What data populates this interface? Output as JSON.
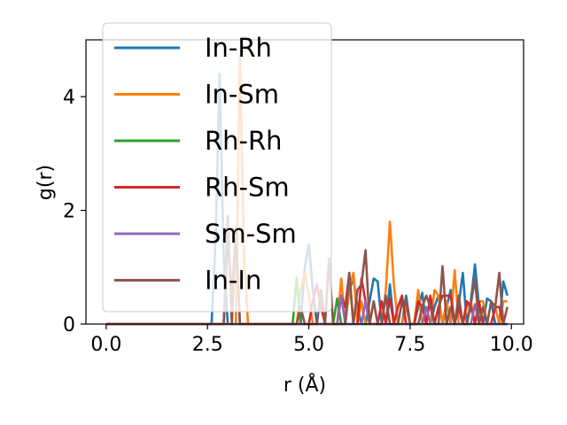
{
  "chart_data": {
    "type": "line",
    "title": "",
    "xlabel": "r (Å)",
    "ylabel": "g(r)",
    "xlim": [
      -0.5,
      10.3
    ],
    "ylim": [
      0,
      5.0
    ],
    "xticks": [
      0.0,
      2.5,
      5.0,
      7.5,
      10.0
    ],
    "xtick_labels": [
      "0.0",
      "2.5",
      "5.0",
      "7.5",
      "10.0"
    ],
    "yticks": [
      0,
      2,
      4
    ],
    "ytick_labels": [
      "0",
      "2",
      "4"
    ],
    "grid": false,
    "legend_position": "top-left",
    "x": [
      0.0,
      0.1,
      0.2,
      0.3,
      0.4,
      0.5,
      0.6,
      0.7,
      0.8,
      0.9,
      1.0,
      1.1,
      1.2,
      1.3,
      1.4,
      1.5,
      1.6,
      1.7,
      1.8,
      1.9,
      2.0,
      2.1,
      2.2,
      2.3,
      2.4,
      2.5,
      2.6,
      2.7,
      2.8,
      2.9,
      3.0,
      3.1,
      3.2,
      3.3,
      3.4,
      3.5,
      3.6,
      3.7,
      3.8,
      3.9,
      4.0,
      4.1,
      4.2,
      4.3,
      4.4,
      4.5,
      4.6,
      4.7,
      4.8,
      4.9,
      5.0,
      5.1,
      5.2,
      5.3,
      5.4,
      5.5,
      5.6,
      5.7,
      5.8,
      5.9,
      6.0,
      6.1,
      6.2,
      6.3,
      6.4,
      6.5,
      6.6,
      6.7,
      6.8,
      6.9,
      7.0,
      7.1,
      7.2,
      7.3,
      7.4,
      7.5,
      7.6,
      7.7,
      7.8,
      7.9,
      8.0,
      8.1,
      8.2,
      8.3,
      8.4,
      8.5,
      8.6,
      8.7,
      8.8,
      8.9,
      9.0,
      9.1,
      9.2,
      9.3,
      9.4,
      9.5,
      9.6,
      9.7,
      9.8,
      9.9
    ],
    "series": [
      {
        "name": "In-Rh",
        "color": "#1f77b4",
        "values": [
          0,
          0,
          0,
          0,
          0,
          0,
          0,
          0,
          0,
          0,
          0,
          0,
          0,
          0,
          0,
          0,
          0,
          0,
          0,
          0,
          0,
          0,
          0,
          0,
          0,
          0,
          0,
          1.5,
          4.4,
          1.2,
          0,
          0,
          0,
          0,
          0,
          0,
          0,
          0,
          0,
          0,
          0,
          0,
          0,
          0,
          0,
          0,
          0,
          0,
          0,
          1.0,
          1.4,
          0.6,
          0,
          0,
          0,
          0,
          0,
          0,
          0,
          0,
          0.6,
          0.8,
          0.3,
          0,
          0,
          0.4,
          0.8,
          0.75,
          0,
          0,
          0.7,
          0,
          0,
          0,
          0.5,
          0,
          0,
          0.3,
          0.55,
          0,
          0,
          0.3,
          0.5,
          0,
          0.3,
          0.6,
          0,
          0.35,
          0.9,
          0,
          0.4,
          1.05,
          0.3,
          0,
          0.45,
          0.4,
          0,
          0,
          0.75,
          0.5
        ]
      },
      {
        "name": "In-Sm",
        "color": "#ff7f0e",
        "values": [
          0,
          0,
          0,
          0,
          0,
          0,
          0,
          0,
          0,
          0,
          0,
          0,
          0,
          0,
          0,
          0,
          0,
          0,
          0,
          0,
          0,
          0,
          0,
          0,
          0,
          0,
          0,
          0,
          0,
          0,
          0,
          0,
          0,
          4.75,
          1.2,
          0,
          0,
          0,
          0,
          0,
          0,
          0,
          0,
          0,
          0,
          0,
          0,
          0,
          0.6,
          0.9,
          0.5,
          0,
          0,
          0,
          0,
          0,
          0,
          0,
          0.8,
          0,
          0.6,
          0.9,
          0,
          0.4,
          0,
          0,
          0.4,
          0,
          0,
          0.6,
          1.8,
          0.7,
          0,
          0,
          0.3,
          0,
          0,
          0.6,
          0,
          0,
          0,
          0.6,
          0.5,
          0,
          0.4,
          0,
          0.95,
          0,
          0,
          0.3,
          0.4,
          0,
          0.4,
          0.4,
          0,
          0,
          0.3,
          0,
          0.4,
          0.4
        ]
      },
      {
        "name": "Rh-Rh",
        "color": "#2ca02c",
        "values": [
          0,
          0,
          0,
          0,
          0,
          0,
          0,
          0,
          0,
          0,
          0,
          0,
          0,
          0,
          0,
          0,
          0,
          0,
          0,
          0,
          0,
          0,
          0,
          0,
          0,
          0,
          0,
          0,
          0,
          0,
          0,
          0,
          0,
          0,
          0,
          0,
          0,
          0,
          0,
          0,
          0,
          0,
          0,
          0,
          0,
          0,
          0,
          0.82,
          0,
          0,
          0,
          0,
          0,
          0,
          0,
          0,
          0,
          0.45,
          0,
          0,
          0,
          0,
          0,
          0,
          0,
          0,
          0,
          0,
          0,
          0,
          0,
          0,
          0,
          0,
          0,
          0,
          0,
          0,
          0,
          0,
          0,
          0,
          0,
          0,
          0,
          0,
          0,
          0,
          0,
          0,
          0,
          0,
          0,
          0,
          0,
          0,
          0,
          0,
          0,
          0
        ]
      },
      {
        "name": "Rh-Sm",
        "color": "#d62728",
        "values": [
          0,
          0,
          0,
          0,
          0,
          0,
          0,
          0,
          0,
          0,
          0,
          0,
          0,
          0,
          0,
          0,
          0,
          0,
          0,
          0,
          0,
          0,
          0,
          0,
          0,
          0,
          0,
          0,
          0,
          0,
          1.5,
          0.5,
          1.6,
          0,
          0,
          0,
          0,
          0,
          0,
          0,
          0,
          0,
          0,
          0,
          0,
          0,
          0,
          0,
          0,
          0,
          0,
          0.4,
          0.7,
          0.3,
          0,
          0,
          0,
          0,
          0.5,
          0.3,
          0.9,
          0,
          0,
          0.8,
          0.4,
          0,
          0,
          0,
          0.4,
          0,
          0.45,
          0,
          0.3,
          0.5,
          0,
          0,
          0,
          0.4,
          0.3,
          0,
          0.5,
          0,
          0.3,
          0.5,
          0.5,
          0.5,
          0,
          0.3,
          0,
          0.4,
          0.3,
          0,
          0.4,
          0,
          0,
          0,
          0.3,
          0.3,
          0,
          0
        ]
      },
      {
        "name": "Sm-Sm",
        "color": "#9467bd",
        "values": [
          0,
          0,
          0,
          0,
          0,
          0,
          0,
          0,
          0,
          0,
          0,
          0,
          0,
          0,
          0,
          0,
          0,
          0,
          0,
          0,
          0,
          0,
          0,
          0,
          0,
          0,
          0,
          0,
          0,
          0,
          0,
          0,
          0,
          0,
          0,
          0,
          0,
          0,
          0,
          0,
          0,
          0,
          0,
          0,
          0,
          0,
          0,
          0,
          0,
          0,
          0,
          0,
          0,
          0,
          0,
          0,
          0,
          0,
          0.5,
          0,
          0,
          0,
          0,
          0,
          0.4,
          0,
          0,
          0,
          0,
          0,
          0,
          0,
          0,
          0,
          0,
          0,
          0,
          0,
          0,
          0.3,
          0,
          0,
          0,
          0,
          0,
          0,
          0,
          0,
          0,
          0,
          0,
          0.35,
          0,
          0,
          0,
          0,
          0,
          0,
          0,
          0
        ]
      },
      {
        "name": "In-In",
        "color": "#8c564b",
        "values": [
          0,
          0,
          0,
          0,
          0,
          0,
          0,
          0,
          0,
          0,
          0,
          0,
          0,
          0,
          0,
          0,
          0,
          0,
          0,
          0,
          0,
          0,
          0,
          0,
          0,
          0,
          0,
          0,
          0,
          0,
          1.9,
          0,
          1.7,
          0,
          0,
          0,
          0,
          0,
          0,
          0,
          0,
          0,
          0,
          0,
          0,
          0,
          0,
          0,
          0.3,
          0,
          0,
          0,
          0,
          0.6,
          0,
          1.15,
          0,
          0,
          0,
          0,
          0.9,
          0,
          0.6,
          0.7,
          1.3,
          0,
          0.4,
          0,
          0,
          0.5,
          0,
          0,
          0,
          0.4,
          0.4,
          0,
          0,
          0,
          0.3,
          0.5,
          0.3,
          0,
          0,
          1.02,
          0,
          0.3,
          0,
          0.5,
          0,
          0,
          0.35,
          0.8,
          0,
          0.3,
          0,
          0.4,
          0.3,
          0.9,
          0,
          0.3
        ]
      }
    ]
  }
}
